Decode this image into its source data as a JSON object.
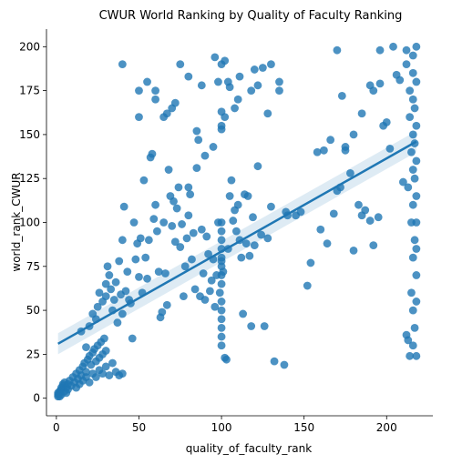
{
  "chart_data": {
    "type": "scatter",
    "title": "CWUR World Ranking by Quality of Faculty Ranking",
    "xlabel": "quality_of_faculty_rank",
    "ylabel": "world_rank_CWUR",
    "xlim": [
      -6,
      228
    ],
    "ylim": [
      -10,
      210
    ],
    "xticks": [
      0,
      50,
      100,
      150,
      200
    ],
    "yticks": [
      0,
      25,
      50,
      75,
      100,
      125,
      150,
      175,
      200
    ],
    "grid": false,
    "regression": {
      "x": [
        1,
        218
      ],
      "y": [
        31,
        146
      ],
      "ci_low": [
        25,
        140
      ],
      "ci_high": [
        37,
        152
      ]
    },
    "points": [
      [
        1,
        1
      ],
      [
        1,
        2
      ],
      [
        2,
        3
      ],
      [
        2,
        4
      ],
      [
        3,
        5
      ],
      [
        3,
        6
      ],
      [
        4,
        7
      ],
      [
        4,
        8
      ],
      [
        5,
        9
      ],
      [
        1,
        3
      ],
      [
        2,
        1
      ],
      [
        3,
        2
      ],
      [
        5,
        4
      ],
      [
        6,
        6
      ],
      [
        6,
        3
      ],
      [
        7,
        8
      ],
      [
        7,
        5
      ],
      [
        8,
        10
      ],
      [
        9,
        7
      ],
      [
        10,
        12
      ],
      [
        11,
        9
      ],
      [
        12,
        14
      ],
      [
        13,
        11
      ],
      [
        14,
        16
      ],
      [
        15,
        13
      ],
      [
        16,
        18
      ],
      [
        17,
        20
      ],
      [
        18,
        15
      ],
      [
        19,
        22
      ],
      [
        20,
        24
      ],
      [
        21,
        19
      ],
      [
        22,
        26
      ],
      [
        23,
        28
      ],
      [
        24,
        21
      ],
      [
        25,
        30
      ],
      [
        26,
        23
      ],
      [
        27,
        32
      ],
      [
        28,
        25
      ],
      [
        29,
        34
      ],
      [
        30,
        27
      ],
      [
        12,
        6
      ],
      [
        14,
        8
      ],
      [
        16,
        10
      ],
      [
        18,
        12
      ],
      [
        20,
        9
      ],
      [
        22,
        14
      ],
      [
        24,
        12
      ],
      [
        26,
        16
      ],
      [
        28,
        14
      ],
      [
        30,
        18
      ],
      [
        32,
        13
      ],
      [
        34,
        20
      ],
      [
        36,
        15
      ],
      [
        38,
        13
      ],
      [
        40,
        14
      ],
      [
        15,
        38
      ],
      [
        18,
        29
      ],
      [
        20,
        41
      ],
      [
        22,
        48
      ],
      [
        24,
        45
      ],
      [
        25,
        52
      ],
      [
        26,
        60
      ],
      [
        28,
        55
      ],
      [
        30,
        58
      ],
      [
        30,
        65
      ],
      [
        31,
        75
      ],
      [
        32,
        70
      ],
      [
        33,
        62
      ],
      [
        34,
        50
      ],
      [
        35,
        56
      ],
      [
        36,
        66
      ],
      [
        37,
        43
      ],
      [
        38,
        78
      ],
      [
        39,
        59
      ],
      [
        40,
        48
      ],
      [
        40,
        90
      ],
      [
        41,
        109
      ],
      [
        42,
        61
      ],
      [
        43,
        72
      ],
      [
        44,
        56
      ],
      [
        45,
        54
      ],
      [
        46,
        34
      ],
      [
        47,
        100
      ],
      [
        48,
        79
      ],
      [
        49,
        88
      ],
      [
        50,
        69
      ],
      [
        51,
        91
      ],
      [
        52,
        60
      ],
      [
        53,
        124
      ],
      [
        54,
        80
      ],
      [
        55,
        68
      ],
      [
        56,
        90
      ],
      [
        57,
        137
      ],
      [
        58,
        139
      ],
      [
        59,
        102
      ],
      [
        60,
        110
      ],
      [
        61,
        95
      ],
      [
        62,
        72
      ],
      [
        63,
        46
      ],
      [
        64,
        49
      ],
      [
        65,
        100
      ],
      [
        66,
        71
      ],
      [
        67,
        53
      ],
      [
        68,
        130
      ],
      [
        69,
        115
      ],
      [
        70,
        98
      ],
      [
        71,
        112
      ],
      [
        72,
        89
      ],
      [
        73,
        108
      ],
      [
        74,
        120
      ],
      [
        75,
        86
      ],
      [
        76,
        99
      ],
      [
        77,
        58
      ],
      [
        78,
        75
      ],
      [
        79,
        91
      ],
      [
        80,
        104
      ],
      [
        81,
        116
      ],
      [
        82,
        79
      ],
      [
        83,
        94
      ],
      [
        84,
        62
      ],
      [
        85,
        131
      ],
      [
        86,
        147
      ],
      [
        87,
        58
      ],
      [
        88,
        96
      ],
      [
        89,
        71
      ],
      [
        90,
        56
      ],
      [
        91,
        92
      ],
      [
        92,
        82
      ],
      [
        93,
        61
      ],
      [
        94,
        67
      ],
      [
        95,
        79
      ],
      [
        96,
        52
      ],
      [
        97,
        70
      ],
      [
        98,
        100
      ],
      [
        99,
        60
      ],
      [
        100,
        78
      ],
      [
        100,
        40
      ],
      [
        100,
        30
      ],
      [
        100,
        35
      ],
      [
        100,
        45
      ],
      [
        100,
        50
      ],
      [
        100,
        55
      ],
      [
        100,
        65
      ],
      [
        100,
        70
      ],
      [
        100,
        75
      ],
      [
        100,
        80
      ],
      [
        100,
        85
      ],
      [
        100,
        90
      ],
      [
        100,
        95
      ],
      [
        100,
        100
      ],
      [
        101,
        72
      ],
      [
        102,
        23
      ],
      [
        103,
        22
      ],
      [
        104,
        85
      ],
      [
        105,
        115
      ],
      [
        106,
        124
      ],
      [
        107,
        101
      ],
      [
        108,
        107
      ],
      [
        109,
        95
      ],
      [
        110,
        110
      ],
      [
        111,
        90
      ],
      [
        112,
        80
      ],
      [
        113,
        48
      ],
      [
        114,
        116
      ],
      [
        115,
        88
      ],
      [
        116,
        115
      ],
      [
        117,
        81
      ],
      [
        118,
        41
      ],
      [
        119,
        103
      ],
      [
        120,
        87
      ],
      [
        122,
        132
      ],
      [
        124,
        93
      ],
      [
        126,
        41
      ],
      [
        128,
        91
      ],
      [
        130,
        109
      ],
      [
        132,
        21
      ],
      [
        135,
        175
      ],
      [
        138,
        19
      ],
      [
        139,
        106
      ],
      [
        140,
        104
      ],
      [
        145,
        104
      ],
      [
        148,
        106
      ],
      [
        152,
        64
      ],
      [
        154,
        77
      ],
      [
        158,
        140
      ],
      [
        160,
        96
      ],
      [
        162,
        141
      ],
      [
        164,
        88
      ],
      [
        166,
        147
      ],
      [
        168,
        105
      ],
      [
        170,
        118
      ],
      [
        172,
        120
      ],
      [
        175,
        141
      ],
      [
        178,
        128
      ],
      [
        180,
        84
      ],
      [
        183,
        110
      ],
      [
        185,
        104
      ],
      [
        187,
        107
      ],
      [
        190,
        101
      ],
      [
        192,
        87
      ],
      [
        195,
        103
      ],
      [
        196,
        179
      ],
      [
        198,
        155
      ],
      [
        200,
        157
      ],
      [
        202,
        142
      ],
      [
        204,
        200
      ],
      [
        206,
        184
      ],
      [
        208,
        181
      ],
      [
        210,
        123
      ],
      [
        212,
        36
      ],
      [
        212,
        190
      ],
      [
        212,
        198
      ],
      [
        213,
        33
      ],
      [
        213,
        120
      ],
      [
        214,
        24
      ],
      [
        214,
        175
      ],
      [
        214,
        160
      ],
      [
        215,
        140
      ],
      [
        215,
        100
      ],
      [
        215,
        60
      ],
      [
        216,
        30
      ],
      [
        216,
        50
      ],
      [
        216,
        80
      ],
      [
        216,
        110
      ],
      [
        216,
        130
      ],
      [
        216,
        150
      ],
      [
        216,
        170
      ],
      [
        216,
        185
      ],
      [
        216,
        195
      ],
      [
        217,
        40
      ],
      [
        217,
        90
      ],
      [
        217,
        125
      ],
      [
        217,
        145
      ],
      [
        217,
        165
      ],
      [
        218,
        24
      ],
      [
        218,
        70
      ],
      [
        218,
        100
      ],
      [
        218,
        135
      ],
      [
        218,
        155
      ],
      [
        218,
        180
      ],
      [
        218,
        200
      ],
      [
        218,
        55
      ],
      [
        218,
        85
      ],
      [
        218,
        115
      ],
      [
        40,
        190
      ],
      [
        50,
        160
      ],
      [
        50,
        175
      ],
      [
        55,
        180
      ],
      [
        60,
        175
      ],
      [
        60,
        170
      ],
      [
        65,
        160
      ],
      [
        67,
        162
      ],
      [
        70,
        165
      ],
      [
        72,
        168
      ],
      [
        75,
        190
      ],
      [
        80,
        183
      ],
      [
        80,
        120
      ],
      [
        85,
        152
      ],
      [
        88,
        178
      ],
      [
        90,
        138
      ],
      [
        95,
        143
      ],
      [
        96,
        194
      ],
      [
        98,
        180
      ],
      [
        100,
        163
      ],
      [
        100,
        155
      ],
      [
        100,
        153
      ],
      [
        100,
        190
      ],
      [
        102,
        192
      ],
      [
        102,
        160
      ],
      [
        104,
        180
      ],
      [
        105,
        177
      ],
      [
        108,
        165
      ],
      [
        110,
        170
      ],
      [
        111,
        183
      ],
      [
        118,
        175
      ],
      [
        120,
        187
      ],
      [
        122,
        178
      ],
      [
        125,
        188
      ],
      [
        128,
        162
      ],
      [
        130,
        190
      ],
      [
        135,
        180
      ],
      [
        170,
        198
      ],
      [
        173,
        172
      ],
      [
        175,
        143
      ],
      [
        180,
        150
      ],
      [
        185,
        162
      ],
      [
        190,
        178
      ],
      [
        192,
        175
      ],
      [
        196,
        198
      ]
    ]
  }
}
